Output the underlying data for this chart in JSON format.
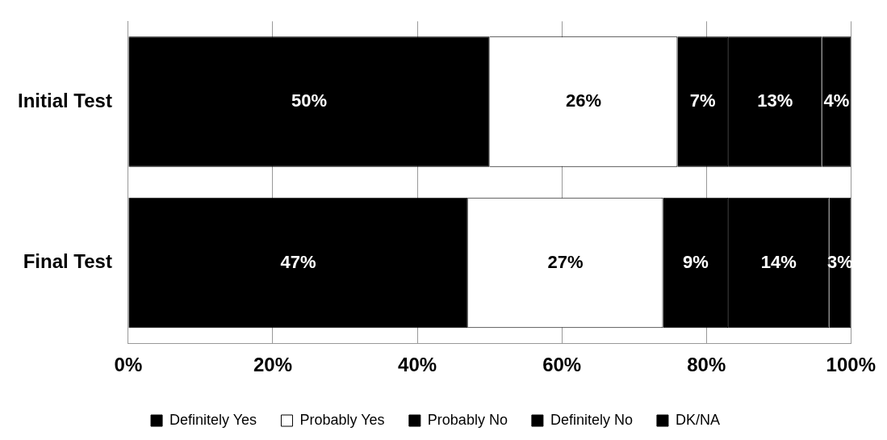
{
  "chart_data": {
    "type": "bar",
    "orientation": "horizontal",
    "stacked": true,
    "data_labels": true,
    "categories": [
      "Initial Test",
      "Final Test"
    ],
    "series": [
      {
        "name": "Definitely Yes",
        "color": "#000000",
        "values": [
          50,
          47
        ],
        "value_labels": [
          "50%",
          "47%"
        ]
      },
      {
        "name": "Probably Yes",
        "color": "#ffffff",
        "values": [
          26,
          27
        ],
        "value_labels": [
          "26%",
          "27%"
        ]
      },
      {
        "name": "Probably No",
        "color": "#000000",
        "values": [
          7,
          9
        ],
        "value_labels": [
          "7%",
          "9%"
        ]
      },
      {
        "name": "Definitely No",
        "color": "#000000",
        "values": [
          13,
          14
        ],
        "value_labels": [
          "13%",
          "14%"
        ]
      },
      {
        "name": "DK/NA",
        "color": "#000000",
        "values": [
          4,
          3
        ],
        "value_labels": [
          "4%",
          "3%"
        ]
      }
    ],
    "xlim": [
      0,
      100
    ],
    "xticks": [
      {
        "value": 0,
        "label": "0%"
      },
      {
        "value": 20,
        "label": "20%"
      },
      {
        "value": 40,
        "label": "40%"
      },
      {
        "value": 60,
        "label": "60%"
      },
      {
        "value": 80,
        "label": "80%"
      },
      {
        "value": 100,
        "label": "100%"
      }
    ],
    "grid": "x",
    "legend": "bottom"
  }
}
